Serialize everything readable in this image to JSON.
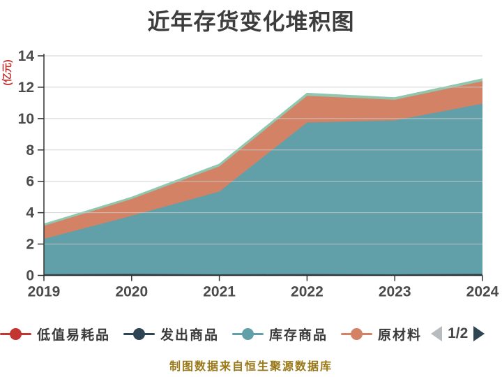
{
  "chart": {
    "title": "近年存货变化堆积图",
    "y_axis_unit": "(亿元)",
    "footer": "制图数据来自恒生聚源数据库"
  },
  "legend": {
    "items": [
      {
        "label": "低值易耗品",
        "color": "#c23531"
      },
      {
        "label": "发出商品",
        "color": "#2f4554"
      },
      {
        "label": "库存商品",
        "color": "#61a0a8"
      },
      {
        "label": "原材料",
        "color": "#d48265"
      }
    ],
    "page_indicator": "1/2",
    "prev_arrow_color": "#b8bcbf",
    "next_arrow_color": "#2f4554"
  },
  "colors": {
    "title_text": "#3d3d3d",
    "axis_text": "#4a4a4a",
    "axis_line": "#333333",
    "gridline": "#cccccc",
    "y_unit_label": "#c23531",
    "footer_text": "#9a7817"
  },
  "chart_data": {
    "type": "area",
    "stacked": true,
    "title": "近年存货变化堆积图",
    "xlabel": "",
    "ylabel": "(亿元)",
    "categories": [
      "2019",
      "2020",
      "2021",
      "2022",
      "2023",
      "2024"
    ],
    "series": [
      {
        "name": "低值易耗品",
        "color": "#c23531",
        "values": [
          0,
          0,
          0,
          0,
          0,
          0
        ]
      },
      {
        "name": "发出商品",
        "color": "#2f4554",
        "values": [
          0.08,
          0.1,
          0.07,
          0.09,
          0.07,
          0.1
        ]
      },
      {
        "name": "库存商品",
        "color": "#61a0a8",
        "values": [
          2.25,
          3.7,
          5.28,
          9.66,
          9.81,
          10.85
        ]
      },
      {
        "name": "原材料",
        "color": "#d48265",
        "values": [
          0.83,
          1.07,
          1.6,
          1.7,
          1.32,
          1.43
        ]
      },
      {
        "name": "",
        "color": "#91c7ae",
        "values": [
          0.1,
          0.1,
          0.13,
          0.15,
          0.12,
          0.14
        ]
      }
    ],
    "ylim": [
      0,
      14
    ],
    "yticks": [
      0,
      2,
      4,
      6,
      8,
      10,
      12,
      14
    ],
    "grid": true,
    "gridlines_on_top": true,
    "legend_position": "bottom"
  }
}
